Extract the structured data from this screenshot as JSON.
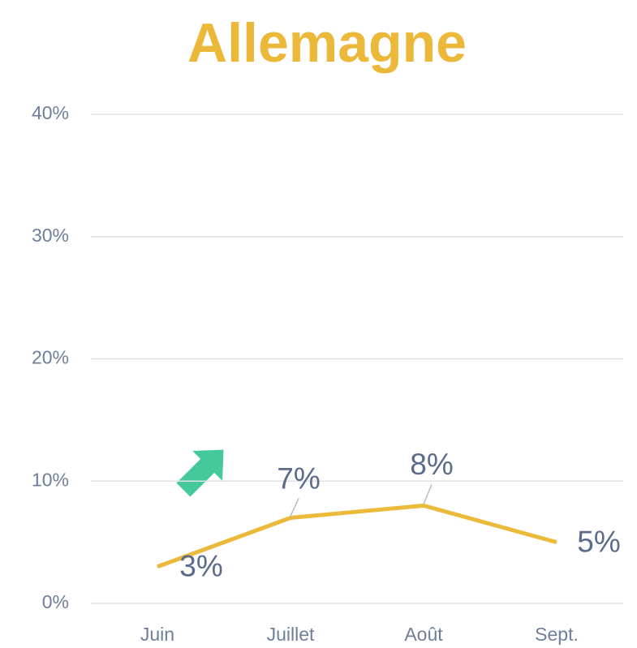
{
  "chart_data": {
    "type": "line",
    "title": "Allemagne",
    "categories": [
      "Juin",
      "Juillet",
      "Août",
      "Sept."
    ],
    "series": [
      {
        "name": "Allemagne",
        "color": "#ebba3a",
        "values": [
          3,
          7,
          8,
          5
        ],
        "value_labels": [
          "3%",
          "7%",
          "8%",
          "5%"
        ]
      }
    ],
    "ylim": [
      0,
      40
    ],
    "yticks": [
      {
        "value": 0,
        "label": "0%"
      },
      {
        "value": 10,
        "label": "10%"
      },
      {
        "value": 20,
        "label": "20%"
      },
      {
        "value": 30,
        "label": "30%"
      },
      {
        "value": 40,
        "label": "40%"
      }
    ],
    "grid": true
  }
}
